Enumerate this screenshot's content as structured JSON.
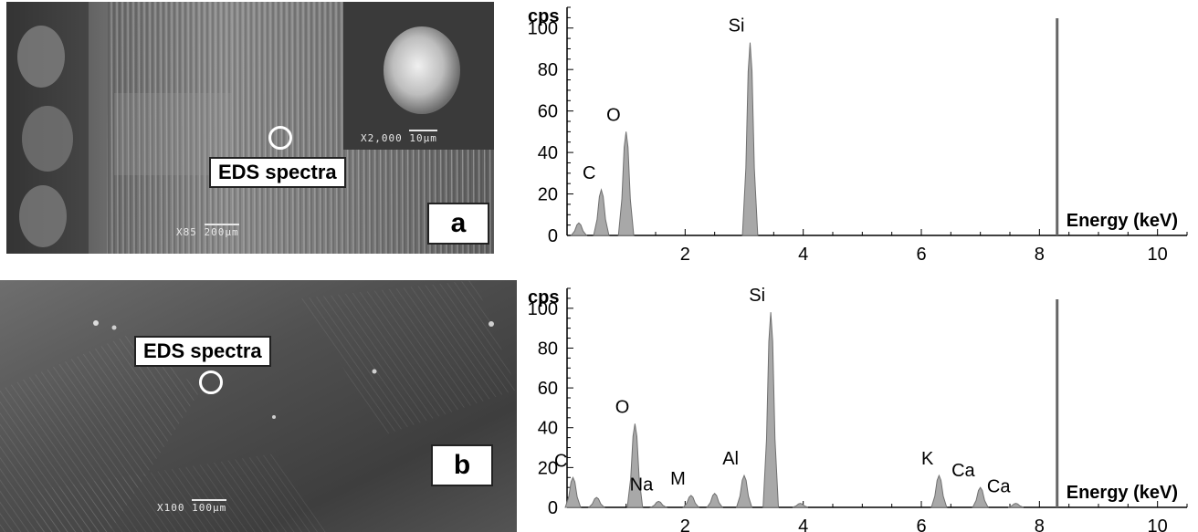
{
  "panel_a": {
    "label": "a",
    "eds_label": "EDS spectra",
    "scale_mag": "X85",
    "scale_len": "200µm",
    "inset_mag": "X2,000",
    "inset_len": "10µm"
  },
  "panel_b": {
    "label": "b",
    "eds_label": "EDS spectra",
    "scale_mag": "X100",
    "scale_len": "100µm"
  },
  "chart_data": [
    {
      "type": "bar",
      "ylabel": "cps",
      "xlabel": "Energy (keV)",
      "xlim": [
        0,
        10.5
      ],
      "ylim": [
        0,
        110
      ],
      "yticks": [
        0,
        20,
        40,
        60,
        80,
        100
      ],
      "xticks": [
        2,
        4,
        6,
        8,
        10
      ],
      "cursor_kev": 8.3,
      "peaks": [
        {
          "x": 0.2,
          "y": 6,
          "label": ""
        },
        {
          "x": 0.58,
          "y": 22,
          "label": "C"
        },
        {
          "x": 1.0,
          "y": 50,
          "label": "O"
        },
        {
          "x": 3.1,
          "y": 93,
          "label": "Si"
        }
      ],
      "annotations": [
        "C",
        "O",
        "Si"
      ]
    },
    {
      "type": "bar",
      "ylabel": "cps",
      "xlabel": "Energy (keV)",
      "xlim": [
        0,
        10.5
      ],
      "ylim": [
        0,
        110
      ],
      "yticks": [
        0,
        20,
        40,
        60,
        80,
        100
      ],
      "xticks": [
        2,
        4,
        6,
        8,
        10
      ],
      "cursor_kev": 8.3,
      "peaks": [
        {
          "x": 0.1,
          "y": 15,
          "label": "C"
        },
        {
          "x": 0.5,
          "y": 5,
          "label": ""
        },
        {
          "x": 1.15,
          "y": 42,
          "label": "O"
        },
        {
          "x": 1.55,
          "y": 3,
          "label": "Na"
        },
        {
          "x": 2.1,
          "y": 6,
          "label": "M"
        },
        {
          "x": 2.5,
          "y": 7,
          "label": ""
        },
        {
          "x": 3.0,
          "y": 16,
          "label": "Al"
        },
        {
          "x": 3.45,
          "y": 98,
          "label": "Si"
        },
        {
          "x": 3.95,
          "y": 2,
          "label": ""
        },
        {
          "x": 6.3,
          "y": 16,
          "label": "K"
        },
        {
          "x": 7.0,
          "y": 10,
          "label": "Ca"
        },
        {
          "x": 7.6,
          "y": 2,
          "label": "Ca"
        }
      ],
      "annotations": [
        "C",
        "O",
        "Na",
        "M",
        "Al",
        "Si",
        "K",
        "Ca",
        "Ca"
      ]
    }
  ]
}
